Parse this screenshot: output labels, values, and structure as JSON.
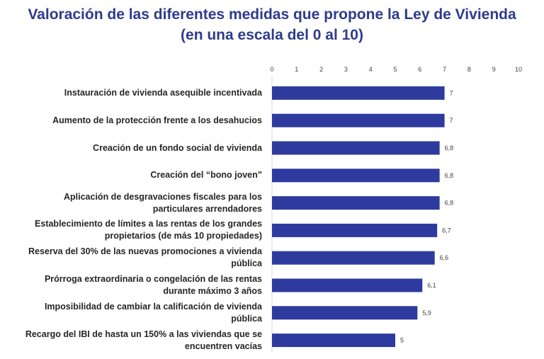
{
  "title": {
    "line1": "Valoración de las diferentes medidas que propone la Ley de Vivienda",
    "line2": "(en una escala del 0 al 10)"
  },
  "colors": {
    "bar": "#2E3A9E",
    "title": "#2E3B8C",
    "axis": "#D9D9D9"
  },
  "chart_data": {
    "type": "bar",
    "orientation": "horizontal",
    "title": "Valoración de las diferentes medidas que propone la Ley de Vivienda (en una escala del 0 al 10)",
    "categories": [
      [
        "Instauración de vivienda asequible incentivada"
      ],
      [
        "Aumento de la protección frente a los desahucios"
      ],
      [
        "Creación de un fondo social de vivienda"
      ],
      [
        "Creación del “bono joven”"
      ],
      [
        "Aplicación de desgravaciones fiscales para los",
        "particulares arrendadores"
      ],
      [
        "Establecimiento de límites a las rentas de los grandes",
        "propietarios (de más 10 propiedades)"
      ],
      [
        "Reserva del 30% de las nuevas promociones a vivienda",
        "pública"
      ],
      [
        "Prórroga extraordinaria o congelación de las rentas",
        "durante máximo 3 años"
      ],
      [
        "Imposibilidad de cambiar la calificación de vivienda",
        "pública"
      ],
      [
        "Recargo del IBI de hasta un 150% a las viviendas que se",
        "encuentren vacías"
      ]
    ],
    "values": [
      7,
      7,
      6.8,
      6.8,
      6.8,
      6.7,
      6.6,
      6.1,
      5.9,
      5
    ],
    "data_labels": [
      "7",
      "7",
      "6,8",
      "6,8",
      "6,8",
      "6,7",
      "6,6",
      "6,1",
      "5,9",
      "5"
    ],
    "xlim": [
      0,
      10
    ],
    "xticks": [
      "0",
      "1",
      "2",
      "3",
      "4",
      "5",
      "6",
      "7",
      "8",
      "9",
      "10"
    ],
    "x_axis_position": "top",
    "grid": false,
    "legend": "none"
  }
}
